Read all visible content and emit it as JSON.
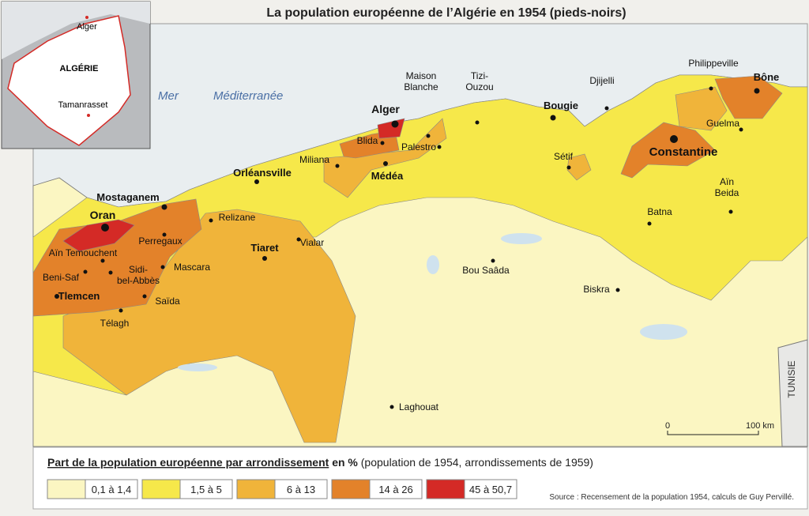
{
  "title": "La population européenne de l’Algérie en 1954 (pieds-noirs)",
  "inset": {
    "labels": [
      "Alger",
      "ALGÉRIE",
      "Tamanrasset"
    ]
  },
  "map": {
    "sea": [
      "Mer",
      "Méditerranée"
    ],
    "neighbor": "TUNISIE",
    "scale": [
      "0",
      "100 km"
    ],
    "places": [
      {
        "lines": [
          "Maison",
          "Blanche"
        ]
      },
      {
        "lines": [
          "Tizi-",
          "Ouzou"
        ]
      },
      {
        "lines": [
          "Alger"
        ]
      },
      {
        "lines": [
          "Bougie"
        ]
      },
      {
        "lines": [
          "Djijelli"
        ]
      },
      {
        "lines": [
          "Philippeville"
        ]
      },
      {
        "lines": [
          "Bône"
        ]
      },
      {
        "lines": [
          "Guelma"
        ]
      },
      {
        "lines": [
          "Constantine"
        ]
      },
      {
        "lines": [
          "Blida"
        ]
      },
      {
        "lines": [
          "Palestro"
        ]
      },
      {
        "lines": [
          "Miliana"
        ]
      },
      {
        "lines": [
          "Médéa"
        ]
      },
      {
        "lines": [
          "Sétif"
        ]
      },
      {
        "lines": [
          "Orléansville"
        ]
      },
      {
        "lines": [
          "Aïn",
          "Beida"
        ]
      },
      {
        "lines": [
          "Mostaganem"
        ]
      },
      {
        "lines": [
          "Oran"
        ]
      },
      {
        "lines": [
          "Relizane"
        ]
      },
      {
        "lines": [
          "Batna"
        ]
      },
      {
        "lines": [
          "Perregaux"
        ]
      },
      {
        "lines": [
          "Tiaret"
        ]
      },
      {
        "lines": [
          "Vialar"
        ]
      },
      {
        "lines": [
          "Aïn Temouchent"
        ]
      },
      {
        "lines": [
          "Sidi-",
          "bel-Abbès"
        ]
      },
      {
        "lines": [
          "Mascara"
        ]
      },
      {
        "lines": [
          "Beni-Saf"
        ]
      },
      {
        "lines": [
          "Bou Saâda"
        ]
      },
      {
        "lines": [
          "Tlemcen"
        ]
      },
      {
        "lines": [
          "Saïda"
        ]
      },
      {
        "lines": [
          "Biskra"
        ]
      },
      {
        "lines": [
          "Télagh"
        ]
      },
      {
        "lines": [
          "Laghouat"
        ]
      }
    ]
  },
  "legend": {
    "title": "Part de la population européenne par arrondissement",
    "unit": "en %",
    "note": "(population de 1954, arrondissements de 1959)",
    "classes": [
      {
        "label": "0,1 à 1,4",
        "color": "#fbf6c2"
      },
      {
        "label": "1,5 à 5",
        "color": "#f6e84a"
      },
      {
        "label": "6 à 13",
        "color": "#f0b43a"
      },
      {
        "label": "14 à 26",
        "color": "#e3822a"
      },
      {
        "label": "45 à 50,7",
        "color": "#d42a26"
      }
    ]
  },
  "source": "Source : Recensement de la population 1954, calculs de Guy Pervillé."
}
